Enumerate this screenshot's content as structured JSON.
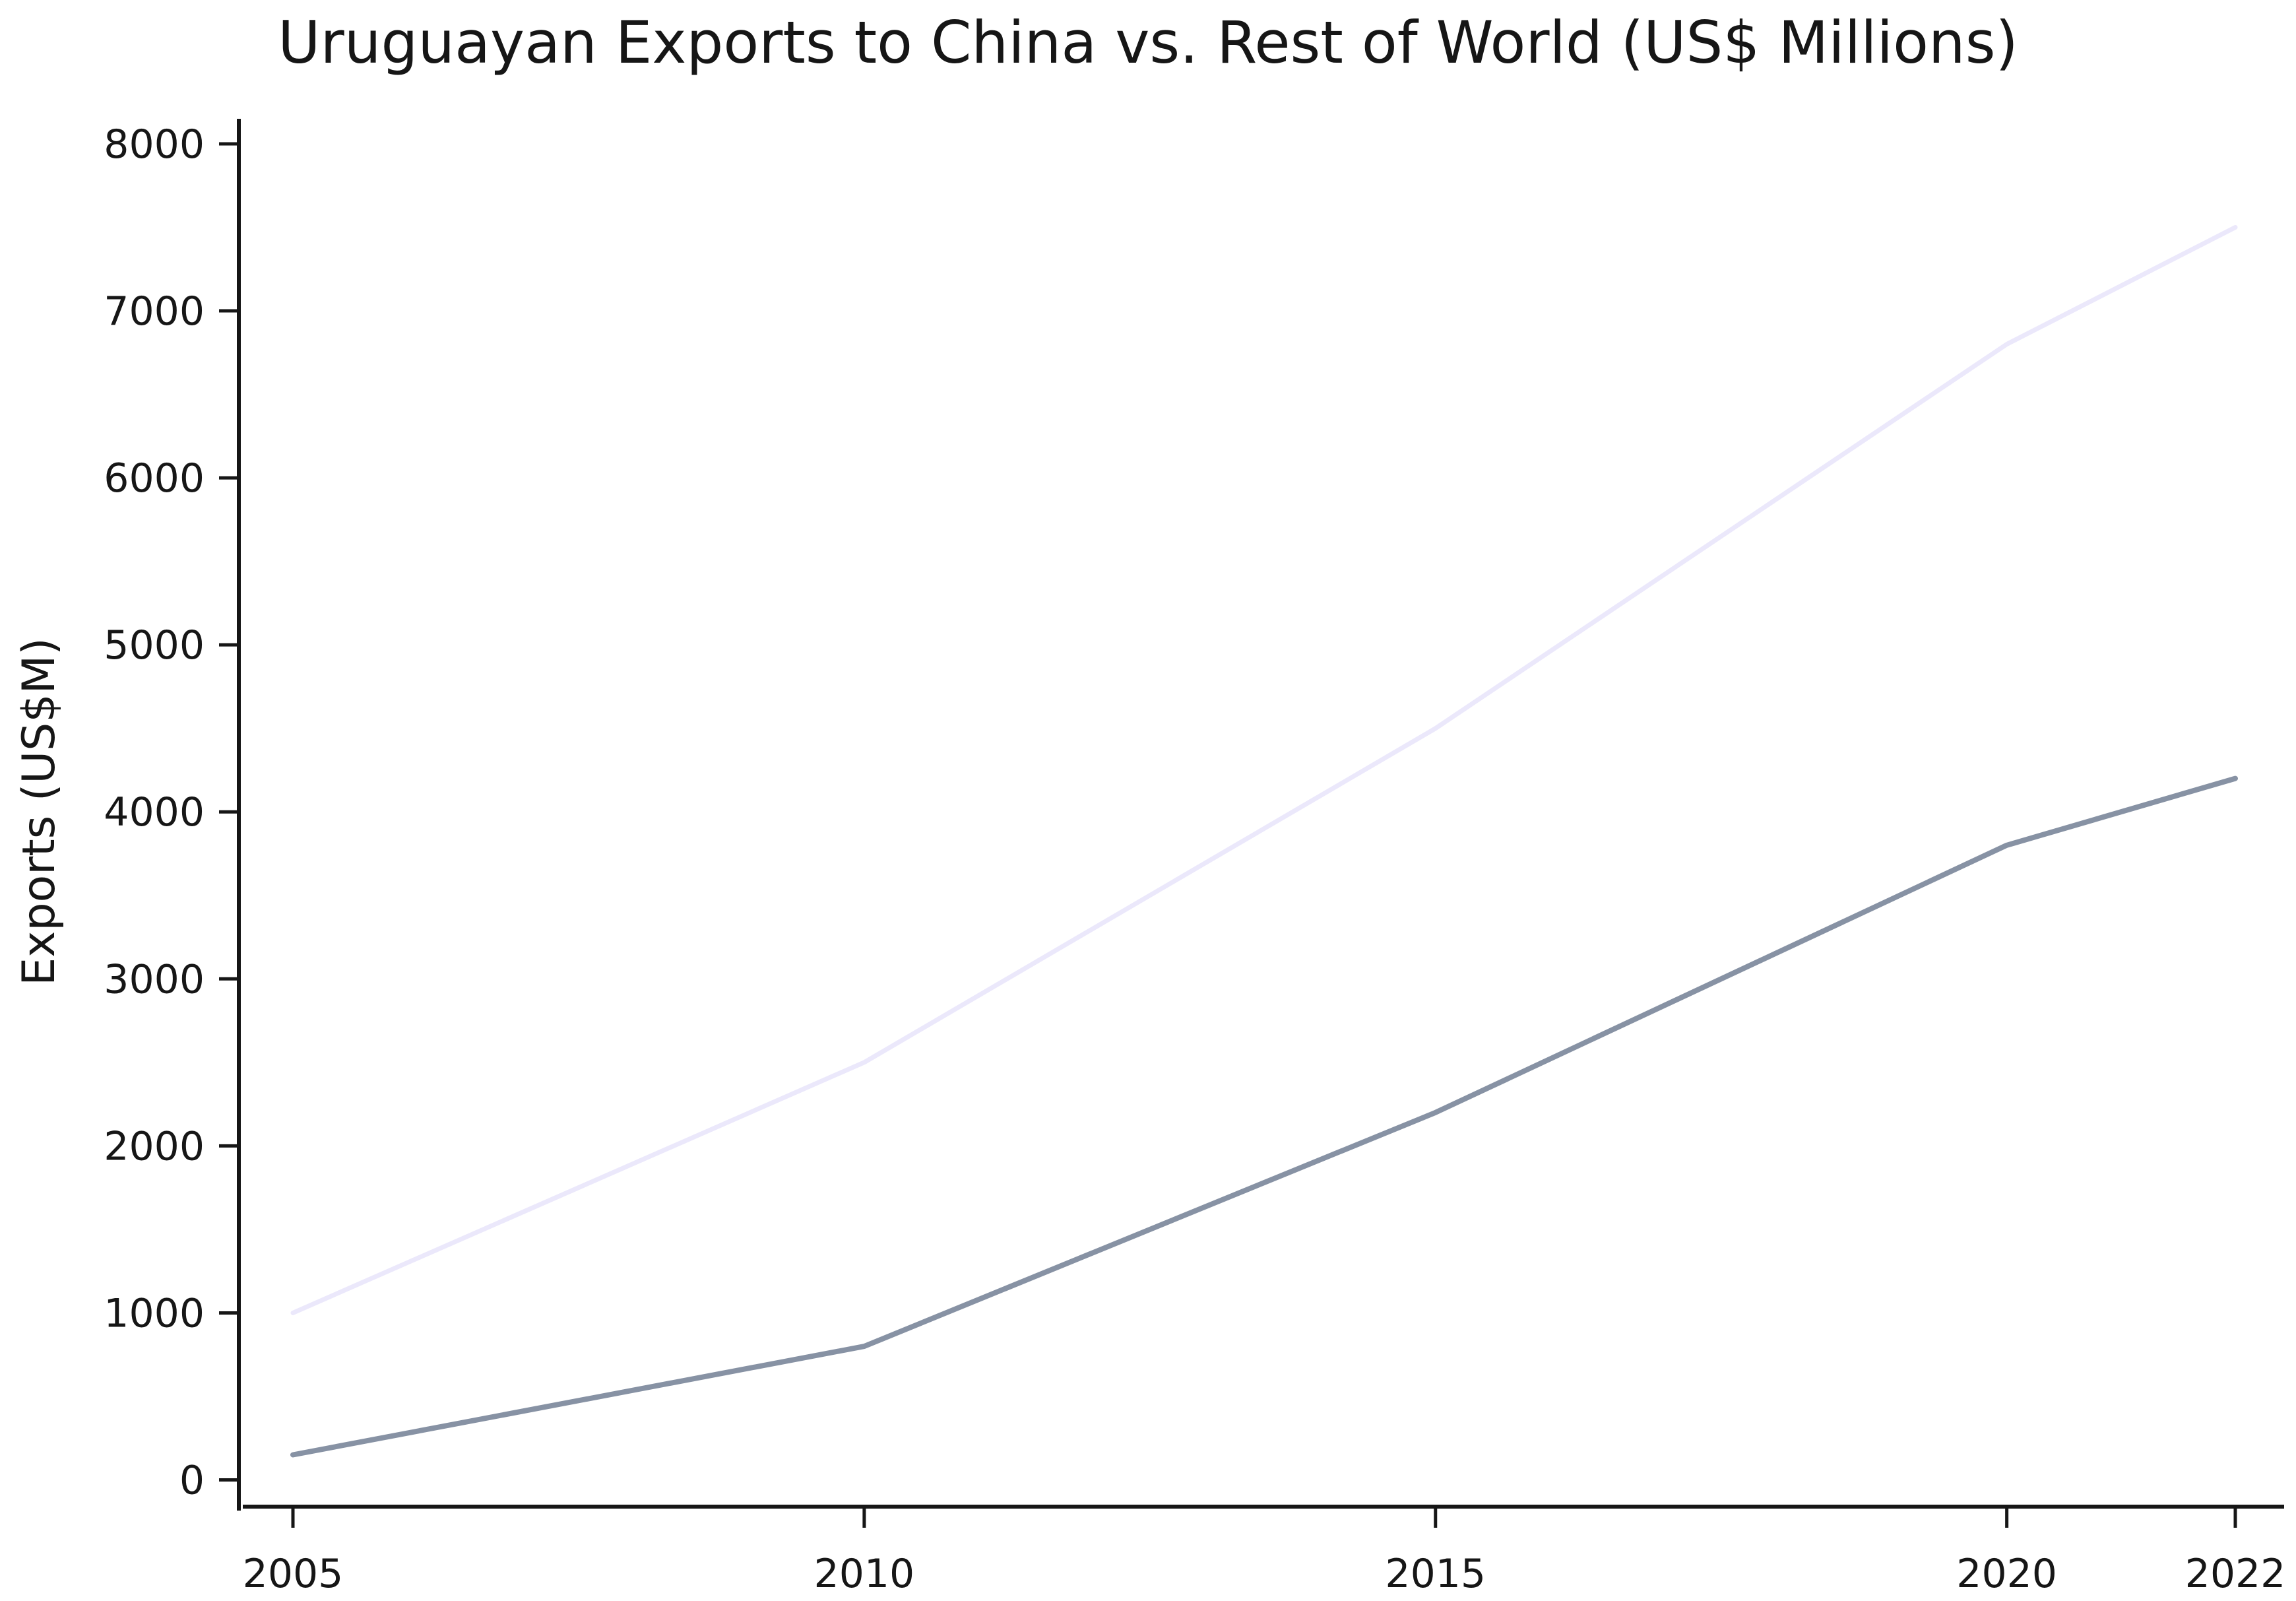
{
  "chart_data": {
    "type": "line",
    "title": "Uruguayan Exports to China vs. Rest of World (US$ Millions)",
    "xlabel": "",
    "ylabel": "Exports (US$M)",
    "x": [
      2005,
      2010,
      2015,
      2020,
      2022
    ],
    "x_tick_labels": [
      "2005",
      "2010",
      "2015",
      "2020",
      "2022"
    ],
    "ylim": [
      -160,
      8150
    ],
    "y_ticks": [
      0,
      1000,
      2000,
      3000,
      4000,
      5000,
      6000,
      7000,
      8000
    ],
    "y_tick_labels": [
      "0",
      "1000",
      "2000",
      "3000",
      "4000",
      "5000",
      "6000",
      "7000",
      "8000"
    ],
    "grid": false,
    "legend": "none",
    "series": [
      {
        "values": [
          1000,
          2500,
          4500,
          6800,
          7500
        ],
        "color": "#ebe8fb"
      },
      {
        "values": [
          150,
          800,
          2200,
          3800,
          4200
        ],
        "color": "#8792a4"
      }
    ]
  }
}
